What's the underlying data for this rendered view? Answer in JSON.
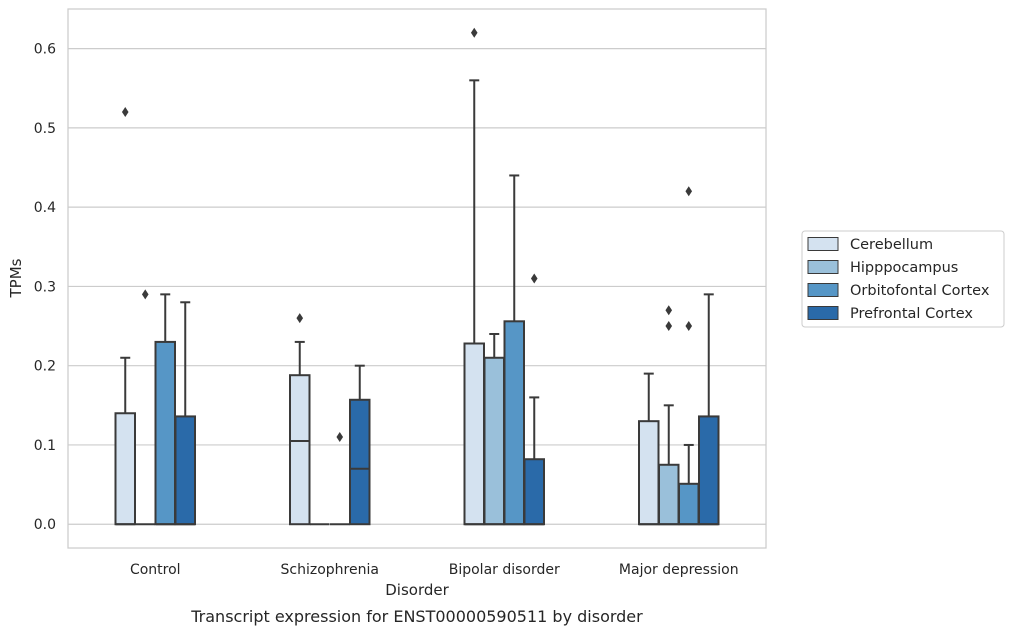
{
  "caption": "Transcript expression for ENST00000590511 by disorder",
  "chart_data": {
    "type": "box",
    "xlabel": "Disorder",
    "ylabel": "TPMs",
    "ylim": [
      -0.03,
      0.65
    ],
    "yticks": [
      0.0,
      0.1,
      0.2,
      0.3,
      0.4,
      0.5,
      0.6
    ],
    "ytick_labels": [
      "0.0",
      "0.1",
      "0.2",
      "0.3",
      "0.4",
      "0.5",
      "0.6"
    ],
    "grid": "horizontal",
    "legend_position": "right",
    "categories": [
      "Control",
      "Schizophrenia",
      "Bipolar disorder",
      "Major depression"
    ],
    "series": [
      {
        "name": "Cerebellum",
        "color": "#d4e2f0",
        "boxes": [
          {
            "q1": 0.0,
            "median": 0.0,
            "q3": 0.14,
            "whisker_low": 0.0,
            "whisker_high": 0.21,
            "outliers": [
              0.52
            ]
          },
          {
            "q1": 0.0,
            "median": 0.105,
            "q3": 0.188,
            "whisker_low": 0.0,
            "whisker_high": 0.23,
            "outliers": [
              0.26
            ]
          },
          {
            "q1": 0.0,
            "median": 0.0,
            "q3": 0.228,
            "whisker_low": 0.0,
            "whisker_high": 0.56,
            "outliers": [
              0.62
            ]
          },
          {
            "q1": 0.0,
            "median": 0.0,
            "q3": 0.13,
            "whisker_low": 0.0,
            "whisker_high": 0.19,
            "outliers": []
          }
        ]
      },
      {
        "name": "Hipppocampus",
        "color": "#9ac0da",
        "boxes": [
          {
            "q1": 0.0,
            "median": 0.0,
            "q3": 0.0,
            "whisker_low": 0.0,
            "whisker_high": 0.0,
            "outliers": [
              0.29
            ]
          },
          {
            "q1": 0.0,
            "median": 0.0,
            "q3": 0.0,
            "whisker_low": 0.0,
            "whisker_high": 0.0,
            "outliers": []
          },
          {
            "q1": 0.0,
            "median": 0.0,
            "q3": 0.21,
            "whisker_low": 0.0,
            "whisker_high": 0.24,
            "outliers": []
          },
          {
            "q1": 0.0,
            "median": 0.0,
            "q3": 0.075,
            "whisker_low": 0.0,
            "whisker_high": 0.15,
            "outliers": [
              0.25,
              0.27
            ]
          }
        ]
      },
      {
        "name": "Orbitofontal Cortex",
        "color": "#5696c6",
        "boxes": [
          {
            "q1": 0.0,
            "median": 0.0,
            "q3": 0.23,
            "whisker_low": 0.0,
            "whisker_high": 0.29,
            "outliers": []
          },
          {
            "q1": 0.0,
            "median": 0.0,
            "q3": 0.0,
            "whisker_low": 0.0,
            "whisker_high": 0.0,
            "outliers": [
              0.11
            ]
          },
          {
            "q1": 0.0,
            "median": 0.0,
            "q3": 0.256,
            "whisker_low": 0.0,
            "whisker_high": 0.44,
            "outliers": []
          },
          {
            "q1": 0.0,
            "median": 0.0,
            "q3": 0.051,
            "whisker_low": 0.0,
            "whisker_high": 0.1,
            "outliers": [
              0.25,
              0.42
            ]
          }
        ]
      },
      {
        "name": "Prefrontal Cortex",
        "color": "#2a6aa9",
        "boxes": [
          {
            "q1": 0.0,
            "median": 0.0,
            "q3": 0.136,
            "whisker_low": 0.0,
            "whisker_high": 0.28,
            "outliers": []
          },
          {
            "q1": 0.0,
            "median": 0.07,
            "q3": 0.157,
            "whisker_low": 0.0,
            "whisker_high": 0.2,
            "outliers": []
          },
          {
            "q1": 0.0,
            "median": 0.0,
            "q3": 0.082,
            "whisker_low": 0.0,
            "whisker_high": 0.16,
            "outliers": [
              0.31
            ]
          },
          {
            "q1": 0.0,
            "median": 0.0,
            "q3": 0.136,
            "whisker_low": 0.0,
            "whisker_high": 0.29,
            "outliers": []
          }
        ]
      }
    ]
  }
}
